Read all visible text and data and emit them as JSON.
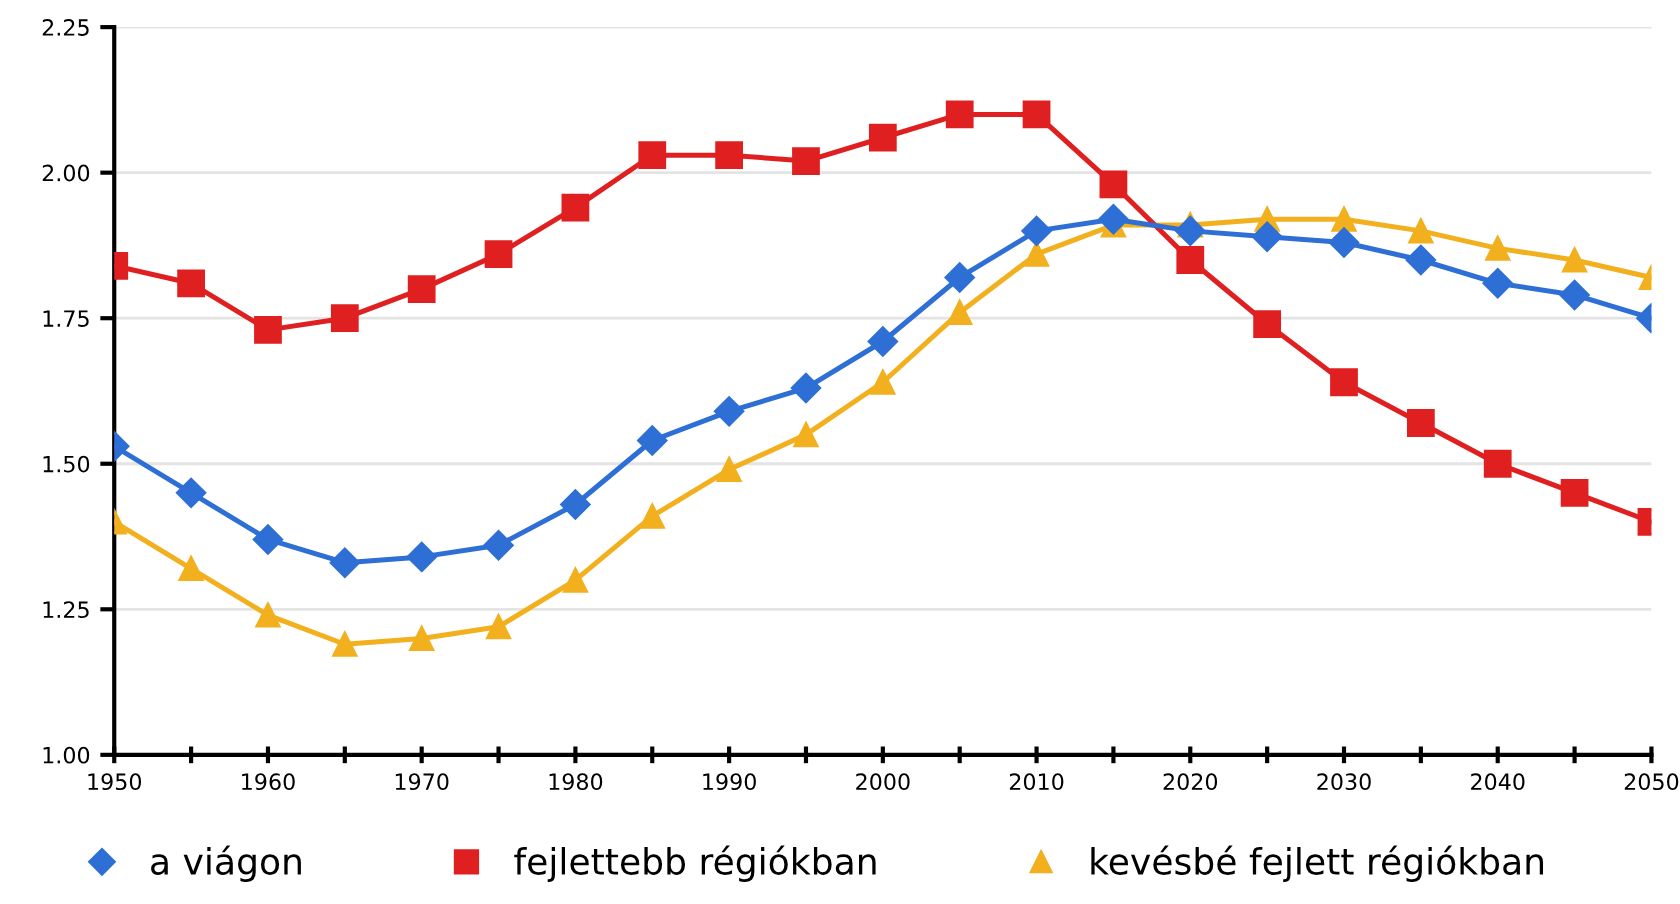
{
  "chart_data": {
    "type": "line",
    "x": [
      1950,
      1955,
      1960,
      1965,
      1970,
      1975,
      1980,
      1985,
      1990,
      1995,
      2000,
      2005,
      2010,
      2015,
      2020,
      2025,
      2030,
      2035,
      2040,
      2045,
      2050
    ],
    "series": [
      {
        "name": "a viágon",
        "color": "#2e6fd6",
        "marker": "diamond",
        "values": [
          1.53,
          1.45,
          1.37,
          1.33,
          1.34,
          1.36,
          1.43,
          1.54,
          1.59,
          1.63,
          1.71,
          1.82,
          1.9,
          1.92,
          1.9,
          1.89,
          1.88,
          1.85,
          1.81,
          1.79,
          1.75
        ]
      },
      {
        "name": "fejlettebb régiókban",
        "color": "#e02020",
        "marker": "square",
        "values": [
          1.84,
          1.81,
          1.73,
          1.75,
          1.8,
          1.86,
          1.94,
          2.03,
          2.03,
          2.02,
          2.06,
          2.1,
          2.1,
          1.98,
          1.85,
          1.74,
          1.64,
          1.57,
          1.5,
          1.45,
          1.4
        ]
      },
      {
        "name": "kevésbé fejlett régiókban",
        "color": "#f2b01e",
        "marker": "triangle",
        "values": [
          1.4,
          1.32,
          1.24,
          1.19,
          1.2,
          1.22,
          1.3,
          1.41,
          1.49,
          1.55,
          1.64,
          1.76,
          1.86,
          1.91,
          1.91,
          1.92,
          1.92,
          1.9,
          1.87,
          1.85,
          1.82
        ]
      }
    ],
    "xlim": [
      1950,
      2050
    ],
    "xticks": [
      1950,
      {
        "value": 1955,
        "label": null
      },
      1960,
      {
        "value": 1965,
        "label": null
      },
      1970,
      {
        "value": 1975,
        "label": null
      },
      1980,
      {
        "value": 1985,
        "label": null
      },
      1990,
      {
        "value": 1995,
        "label": null
      },
      2000,
      {
        "value": 2005,
        "label": null
      },
      2010,
      {
        "value": 2015,
        "label": null
      },
      2020,
      {
        "value": 2025,
        "label": null
      },
      2030,
      {
        "value": 2035,
        "label": null
      },
      2040,
      {
        "value": 2045,
        "label": null
      },
      2050
    ],
    "ylim": [
      1.0,
      2.25
    ],
    "yticks": [
      {
        "value": 1.0,
        "label": "1.00"
      },
      {
        "value": 1.25,
        "label": "1.25"
      },
      {
        "value": 1.5,
        "label": "1.50"
      },
      {
        "value": 1.75,
        "label": "1.75"
      },
      {
        "value": 2.0,
        "label": "2.00"
      },
      {
        "value": 2.25,
        "label": "2.25"
      }
    ],
    "grid": "y",
    "legend": "bottom",
    "line_style": "solid"
  }
}
